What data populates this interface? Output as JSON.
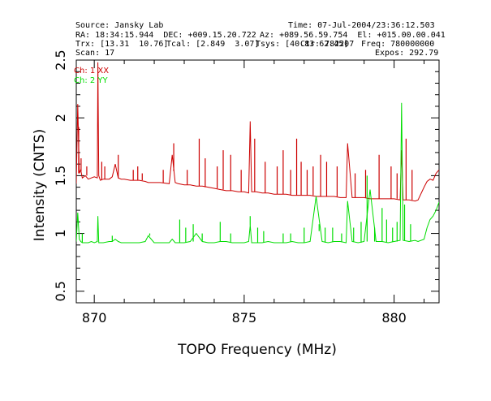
{
  "header": {
    "source": "Source: Jansky Lab",
    "time": "Time: 07-Jul-2004/23:36:12.503",
    "ra_dec": "RA: 18:34:15.944  DEC: +009.15.20.722",
    "az_el": "Az: +089.56.59.754  El: +015.00.00.041",
    "trx": "Trx: [13.31  10.76]",
    "tcal": "Tcal: [2.849  3.07]",
    "tsys": "Tsys: [40.83 62.45]",
    "freq_a": "Ctr: 782207",
    "freq": "Freq: 780000000",
    "scan": "Scan: 17",
    "expos": "Expos: 292.79"
  },
  "chart_data": {
    "type": "line",
    "xlabel": "TOPO Frequency (MHz)",
    "ylabel": "Intensity (CNTS)",
    "xlim": [
      869.4,
      881.5
    ],
    "ylim": [
      0.4,
      2.5
    ],
    "xticks": [
      "870",
      "875",
      "880"
    ],
    "xtick_values": [
      870,
      875,
      880
    ],
    "yticks": [
      "0.5",
      "1",
      "1.5",
      "2",
      "2.5"
    ],
    "ytick_values": [
      0.5,
      1.0,
      1.5,
      2.0,
      2.5
    ],
    "colors": {
      "ch1": "#cc0000",
      "ch2": "#00dd00",
      "axis": "#000000"
    },
    "series": [
      {
        "name": "Ch: 1 XX",
        "color": "#cc0000",
        "x": [
          869.4,
          869.45,
          869.5,
          869.55,
          869.6,
          869.7,
          869.8,
          869.9,
          870.0,
          870.1,
          870.12,
          870.15,
          870.2,
          870.3,
          870.5,
          870.6,
          870.7,
          870.8,
          870.9,
          871.0,
          871.2,
          871.5,
          871.7,
          871.8,
          872.0,
          872.2,
          872.5,
          872.6,
          872.7,
          872.8,
          873.0,
          873.2,
          873.4,
          873.6,
          873.8,
          874.0,
          874.2,
          874.4,
          874.6,
          874.8,
          875.0,
          875.15,
          875.2,
          875.25,
          875.4,
          875.6,
          875.8,
          876.0,
          876.2,
          876.4,
          876.6,
          876.8,
          877.0,
          877.2,
          877.4,
          877.6,
          877.8,
          878.0,
          878.2,
          878.4,
          878.45,
          878.6,
          878.8,
          879.0,
          879.2,
          879.4,
          879.6,
          879.8,
          880.0,
          880.2,
          880.25,
          880.3,
          880.5,
          880.7,
          880.8,
          881.0,
          881.1,
          881.2,
          881.3,
          881.4,
          881.5
        ],
        "y": [
          1.43,
          2.12,
          1.52,
          1.55,
          1.48,
          1.5,
          1.47,
          1.48,
          1.49,
          1.48,
          2.48,
          1.5,
          1.46,
          1.47,
          1.47,
          1.49,
          1.6,
          1.48,
          1.47,
          1.47,
          1.46,
          1.46,
          1.45,
          1.44,
          1.44,
          1.44,
          1.43,
          1.68,
          1.44,
          1.43,
          1.42,
          1.42,
          1.41,
          1.41,
          1.4,
          1.39,
          1.38,
          1.37,
          1.37,
          1.36,
          1.36,
          1.35,
          1.97,
          1.36,
          1.36,
          1.35,
          1.35,
          1.34,
          1.34,
          1.34,
          1.33,
          1.33,
          1.33,
          1.33,
          1.32,
          1.32,
          1.32,
          1.32,
          1.31,
          1.31,
          1.78,
          1.31,
          1.31,
          1.31,
          1.3,
          1.3,
          1.3,
          1.3,
          1.3,
          1.29,
          1.72,
          1.29,
          1.29,
          1.28,
          1.29,
          1.4,
          1.45,
          1.47,
          1.46,
          1.52,
          1.55
        ]
      },
      {
        "name": "Ch: 2 YY",
        "color": "#00dd00",
        "x": [
          869.4,
          869.45,
          869.5,
          869.55,
          869.6,
          869.7,
          869.8,
          869.9,
          870.0,
          870.1,
          870.12,
          870.15,
          870.2,
          870.3,
          870.5,
          870.6,
          870.7,
          870.8,
          870.9,
          871.0,
          871.2,
          871.5,
          871.7,
          871.8,
          872.0,
          872.2,
          872.5,
          872.6,
          872.7,
          872.8,
          873.0,
          873.2,
          873.4,
          873.6,
          873.8,
          874.0,
          874.2,
          874.4,
          874.6,
          874.8,
          875.0,
          875.15,
          875.2,
          875.25,
          875.4,
          875.6,
          875.8,
          876.0,
          876.2,
          876.4,
          876.6,
          876.8,
          877.0,
          877.2,
          877.4,
          877.6,
          877.8,
          878.0,
          878.2,
          878.4,
          878.45,
          878.6,
          878.8,
          879.0,
          879.2,
          879.4,
          879.6,
          879.8,
          880.0,
          880.2,
          880.25,
          880.3,
          880.5,
          880.7,
          880.8,
          881.0,
          881.1,
          881.2,
          881.3,
          881.4,
          881.5
        ],
        "y": [
          0.93,
          1.18,
          0.95,
          0.93,
          0.92,
          0.92,
          0.92,
          0.93,
          0.92,
          0.93,
          1.15,
          0.92,
          0.92,
          0.92,
          0.93,
          0.93,
          0.95,
          0.93,
          0.92,
          0.92,
          0.92,
          0.92,
          0.93,
          0.98,
          0.92,
          0.92,
          0.92,
          0.95,
          0.92,
          0.92,
          0.92,
          0.93,
          1.0,
          0.93,
          0.92,
          0.92,
          0.93,
          0.93,
          0.92,
          0.92,
          0.92,
          0.93,
          1.07,
          0.92,
          0.92,
          0.92,
          0.93,
          0.92,
          0.92,
          0.92,
          0.93,
          0.92,
          0.92,
          0.93,
          1.32,
          0.93,
          0.92,
          0.93,
          0.93,
          0.92,
          1.28,
          0.93,
          0.92,
          0.93,
          1.38,
          0.93,
          0.93,
          0.92,
          0.93,
          0.94,
          2.13,
          0.94,
          0.93,
          0.94,
          0.93,
          0.95,
          1.05,
          1.12,
          1.15,
          1.2,
          1.27
        ]
      }
    ],
    "spikes": [
      {
        "series": 0,
        "x": [
          869.48,
          869.56,
          869.75,
          870.25,
          870.35,
          870.8,
          871.3,
          871.45,
          871.6,
          872.3,
          872.65,
          873.1,
          873.5,
          873.7,
          874.1,
          874.3,
          874.55,
          874.9,
          875.35,
          875.7,
          876.1,
          876.3,
          876.55,
          876.75,
          876.9,
          877.1,
          877.3,
          877.55,
          877.75,
          878.1,
          878.7,
          879.05,
          879.5,
          879.9,
          880.1,
          880.4,
          880.6
        ],
        "y": [
          1.92,
          1.65,
          1.58,
          1.62,
          1.58,
          1.68,
          1.55,
          1.58,
          1.52,
          1.55,
          1.78,
          1.55,
          1.82,
          1.65,
          1.58,
          1.72,
          1.68,
          1.55,
          1.82,
          1.62,
          1.58,
          1.72,
          1.55,
          1.82,
          1.62,
          1.55,
          1.58,
          1.68,
          1.62,
          1.58,
          1.52,
          1.55,
          1.68,
          1.58,
          1.52,
          1.82,
          1.55
        ]
      },
      {
        "series": 1,
        "x": [
          869.6,
          870.6,
          871.85,
          872.85,
          873.05,
          873.3,
          873.6,
          874.2,
          874.55,
          875.2,
          875.45,
          875.65,
          876.3,
          876.55,
          877.0,
          877.5,
          877.7,
          877.95,
          878.25,
          878.65,
          878.9,
          879.1,
          879.35,
          879.6,
          879.75,
          879.95,
          880.1,
          880.35,
          880.55
        ],
        "y": [
          1.0,
          0.98,
          1.0,
          1.12,
          1.05,
          1.08,
          1.0,
          1.1,
          1.0,
          1.15,
          1.05,
          1.02,
          1.0,
          1.0,
          1.05,
          1.02,
          1.05,
          1.05,
          1.0,
          1.05,
          1.1,
          1.5,
          1.05,
          1.22,
          1.12,
          1.05,
          1.1,
          1.25,
          1.08
        ]
      }
    ]
  }
}
